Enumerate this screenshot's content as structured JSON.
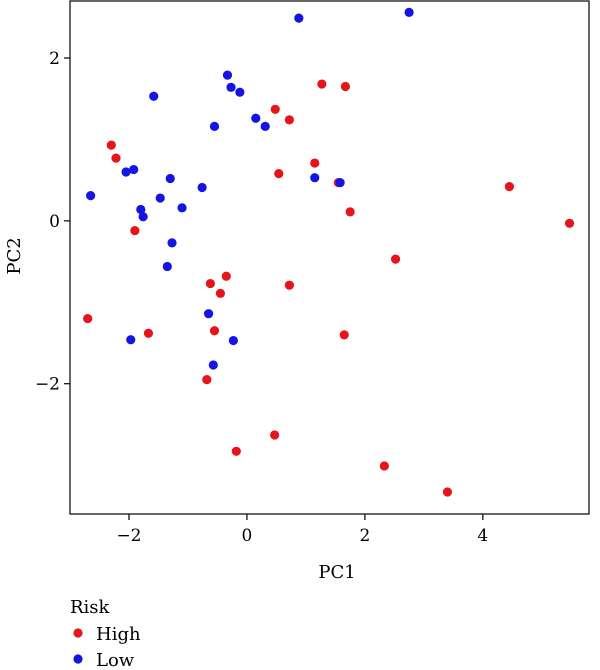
{
  "chart_data": {
    "type": "scatter",
    "title": "",
    "xlabel": "PC1",
    "ylabel": "PC2",
    "xlim": [
      -3.0,
      5.8
    ],
    "ylim": [
      -3.6,
      2.7
    ],
    "x_ticks": [
      -2,
      0,
      2,
      4
    ],
    "y_ticks": [
      -2,
      0,
      2
    ],
    "x_tick_labels": [
      "−2",
      "0",
      "2",
      "4"
    ],
    "y_tick_labels": [
      "−2",
      "0",
      "2"
    ],
    "grid": false,
    "legend": {
      "title": "Risk",
      "placement": "bottom-left-outside",
      "entries": [
        {
          "name": "High",
          "color": "#e8141c"
        },
        {
          "name": "Low",
          "color": "#1414e6"
        }
      ]
    },
    "series": [
      {
        "name": "High",
        "color": "#e8141c",
        "points": [
          [
            -2.3,
            0.93
          ],
          [
            -2.22,
            0.77
          ],
          [
            -1.9,
            -0.12
          ],
          [
            -2.7,
            -1.2
          ],
          [
            -1.67,
            -1.38
          ],
          [
            -0.62,
            -0.77
          ],
          [
            -0.35,
            -0.68
          ],
          [
            -0.45,
            -0.89
          ],
          [
            -0.55,
            -1.35
          ],
          [
            -0.68,
            -1.95
          ],
          [
            -0.18,
            -2.83
          ],
          [
            0.47,
            -2.63
          ],
          [
            0.48,
            1.37
          ],
          [
            0.72,
            1.24
          ],
          [
            0.54,
            0.58
          ],
          [
            0.72,
            -0.79
          ],
          [
            1.27,
            1.68
          ],
          [
            1.67,
            1.65
          ],
          [
            1.15,
            0.71
          ],
          [
            1.55,
            0.47
          ],
          [
            1.75,
            0.11
          ],
          [
            1.65,
            -1.4
          ],
          [
            2.52,
            -0.47
          ],
          [
            2.33,
            -3.01
          ],
          [
            3.4,
            -3.33
          ],
          [
            4.45,
            0.42
          ],
          [
            5.47,
            -0.03
          ]
        ]
      },
      {
        "name": "Low",
        "color": "#1414e6",
        "points": [
          [
            -2.65,
            0.31
          ],
          [
            -2.05,
            0.6
          ],
          [
            -1.92,
            0.63
          ],
          [
            -1.8,
            0.14
          ],
          [
            -1.76,
            0.05
          ],
          [
            -1.58,
            1.53
          ],
          [
            -1.47,
            0.28
          ],
          [
            -1.3,
            0.52
          ],
          [
            -1.27,
            -0.27
          ],
          [
            -1.35,
            -0.56
          ],
          [
            -1.1,
            0.16
          ],
          [
            -0.76,
            0.41
          ],
          [
            -0.65,
            -1.14
          ],
          [
            -0.57,
            -1.77
          ],
          [
            -1.97,
            -1.46
          ],
          [
            -0.23,
            -1.47
          ],
          [
            -0.55,
            1.16
          ],
          [
            -0.33,
            1.79
          ],
          [
            -0.27,
            1.64
          ],
          [
            -0.12,
            1.58
          ],
          [
            0.15,
            1.26
          ],
          [
            0.31,
            1.16
          ],
          [
            0.88,
            2.49
          ],
          [
            1.15,
            0.53
          ],
          [
            1.58,
            0.47
          ],
          [
            2.75,
            2.56
          ]
        ]
      }
    ]
  }
}
